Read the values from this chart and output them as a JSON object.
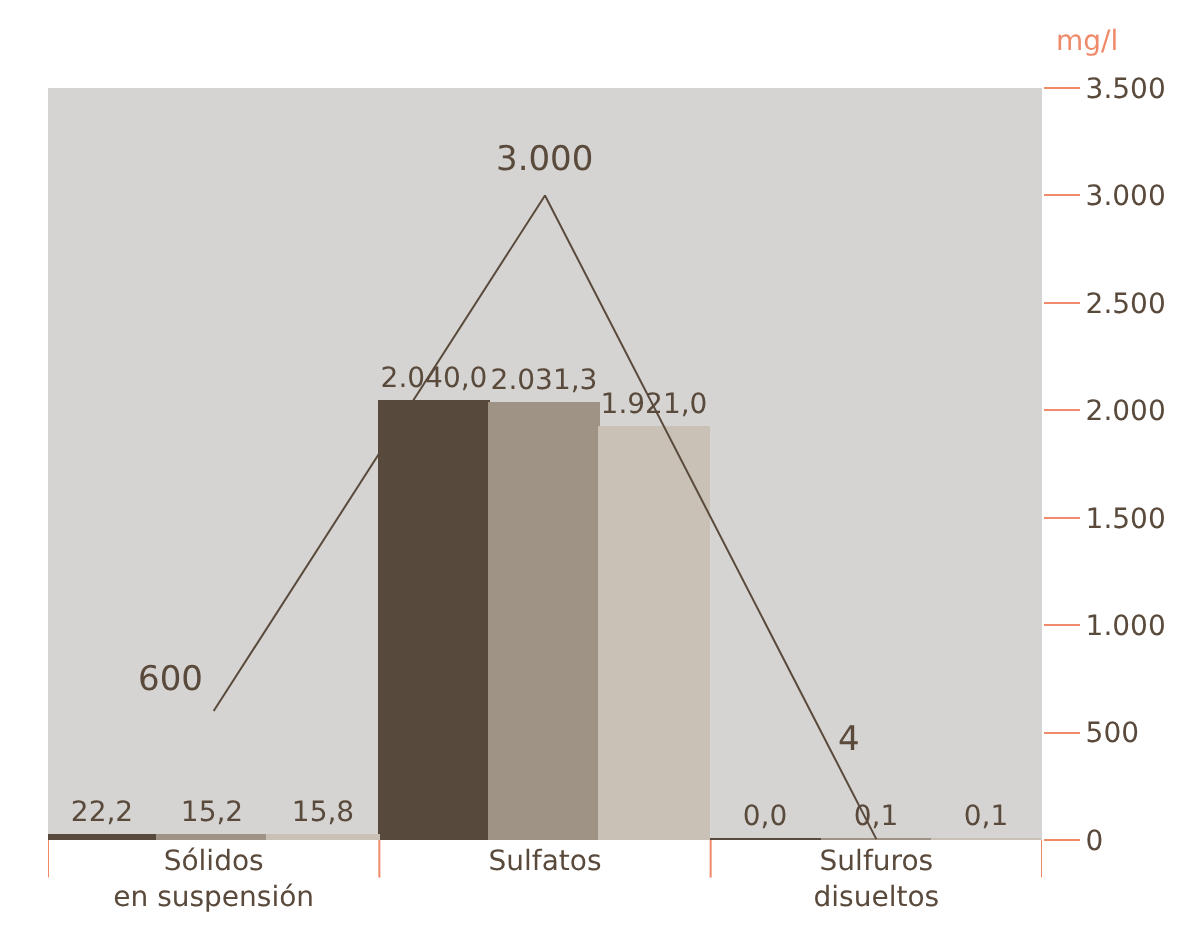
{
  "chart_data": {
    "type": "bar",
    "ylabel": "mg/l",
    "categories": [
      "Sólidos\nen suspensión",
      "Sulfatos",
      "Sulfuros\ndisueltos"
    ],
    "series": [
      {
        "color": "#574a3c",
        "values": [
          22.2,
          2040.0,
          0.0
        ],
        "value_labels": [
          "22,2",
          "2.040,0",
          "0,0"
        ]
      },
      {
        "color": "#9e9385",
        "values": [
          15.2,
          2031.3,
          0.1
        ],
        "value_labels": [
          "15,2",
          "2.031,3",
          "0,1"
        ]
      },
      {
        "color": "#c9c1b6",
        "values": [
          15.8,
          1921.0,
          0.1
        ],
        "value_labels": [
          "15,8",
          "1.921,0",
          "0,1"
        ]
      },
      {
        "type": "line",
        "color": "#5a4a3c",
        "values": [
          600,
          3000,
          4
        ],
        "value_labels": [
          "600",
          "3.000",
          "4"
        ]
      }
    ],
    "ylim": [
      0,
      3500
    ],
    "yticks": [
      0,
      {
        "value": 500,
        "label": "500"
      },
      {
        "value": 1000,
        "label": "1.000"
      },
      {
        "value": 1500,
        "label": "1.500"
      },
      {
        "value": 2000,
        "label": "2.000"
      },
      {
        "value": 2500,
        "label": "2.500"
      },
      {
        "value": 3000,
        "label": "3.000"
      },
      {
        "value": 3500,
        "label": "3.500"
      }
    ],
    "grid": false,
    "legend": false
  }
}
